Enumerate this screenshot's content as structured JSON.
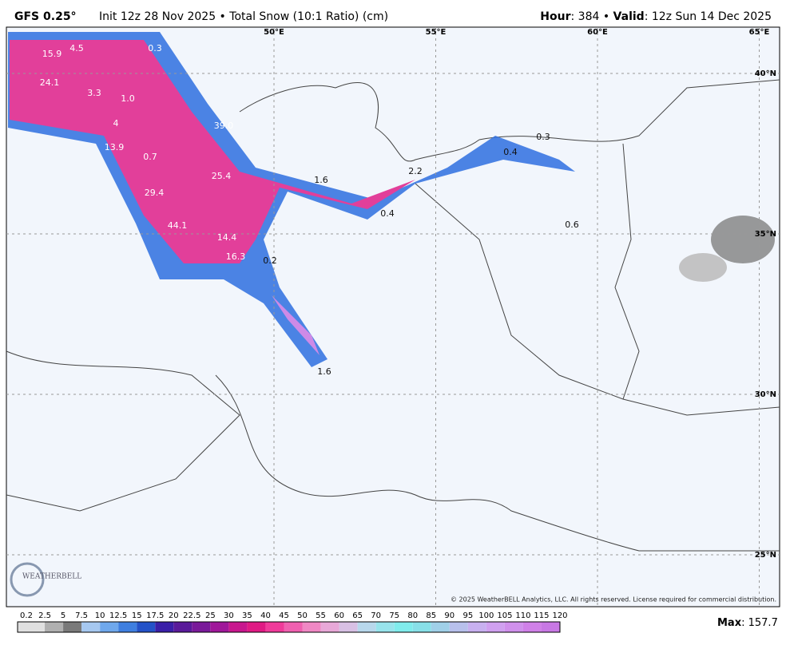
{
  "header": {
    "model": "GFS 0.25°",
    "description": "Init 12z 28 Nov 2025 • Total Snow (10:1 Ratio) (cm)",
    "hour_label": "Hour",
    "hour": ": 384 • ",
    "valid_label": "Valid",
    "valid": ": 12z Sun 14 Dec 2025"
  },
  "map": {
    "lon_lines": [
      {
        "value": 50,
        "label": "50°E"
      },
      {
        "value": 55,
        "label": "55°E"
      },
      {
        "value": 60,
        "label": "60°E"
      },
      {
        "value": 65,
        "label": "65°E"
      }
    ],
    "lat_lines": [
      {
        "value": 40,
        "label": "40°N"
      },
      {
        "value": 35,
        "label": "35°N"
      },
      {
        "value": 30,
        "label": "30°N"
      },
      {
        "value": 25,
        "label": "25°N"
      }
    ],
    "point_labels": [
      15.9,
      4.5,
      0.3,
      24.1,
      3.3,
      {
        "value": 1,
        "label": "1.0"
      },
      {
        "value": 39,
        "label": "39.0"
      },
      4,
      13.9,
      0.7,
      25.4,
      1.6,
      2.2,
      0.3,
      0.4,
      29.4,
      44.1,
      14.4,
      16.3,
      0.2,
      0.4,
      0.6,
      1.6
    ],
    "logo": "WEATHERBELL",
    "copyright": "© 2025 WeatherBELL Analytics, LLC. All rights reserved. License required for commercial distribution."
  },
  "colorbar": {
    "levels": [
      0.2,
      2.5,
      5,
      7.5,
      10,
      12.5,
      15,
      17.5,
      20,
      22.5,
      25,
      30,
      35,
      40,
      45,
      50,
      55,
      60,
      65,
      70,
      75,
      80,
      85,
      90,
      95,
      100,
      105,
      110,
      115,
      120
    ],
    "colors": [
      "#e0e0e0",
      "#b0b0b0",
      "#7a7a7a",
      "#a6c8f0",
      "#6fa8ec",
      "#3f7fe0",
      "#2452c8",
      "#3a1fa8",
      "#5a1a9a",
      "#7a1a9a",
      "#a0179a",
      "#c8168e",
      "#e01a84",
      "#f03a9a",
      "#f060b0",
      "#f088c4",
      "#e8a8d8",
      "#d8c0e4",
      "#b8d8ec",
      "#98e4ec",
      "#80ecec",
      "#88e0e8",
      "#a0d0e8",
      "#b8c0ec",
      "#c8b0f0",
      "#d0a0f0",
      "#d090ec",
      "#d080e8",
      "#c878e4"
    ]
  },
  "max": {
    "label": "Max",
    "value": ": 157.7"
  }
}
